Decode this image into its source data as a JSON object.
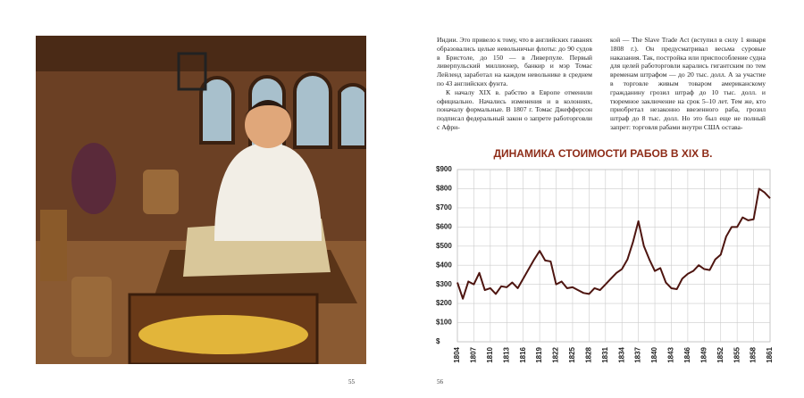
{
  "left_column": [
    "Индии. Это привело к тому, что в английских гаванях образовались целые невольничьи флоты: до 90 судов в Бристоле, до 150 — в Ливерпуле. Первый ливерпульский миллионер, банкир и мэр Томас Лейленд заработал на каждом невольнике в среднем по 43 английских фунта.",
    "К началу XIX в. рабство в Европе отменили официально. Начались изменения и в колониях, поначалу формальные. В 1807 г. Томас Джефферсон подписал федеральный закон о запрете работорговли с Афри-"
  ],
  "right_column": [
    "кой — The Slave Trade Act (вступил в силу 1 января 1808 г.). Он предусматривал весьма суровые наказания. Так, постройка или приспособление судна для целей работорговли карались гигантским по тем временам штрафом — до 20 тыс. долл. А за участие в торговле живым товаром американскому гражданину грозил штраф до 10 тыс. долл. и тюремное заключение на срок 5–10 лет. Тем же, кто приобретал незаконно ввезенного раба, грозил штраф до 8 тыс. долл. Но это был еще не полный запрет: торговля рабами внутри США остава-"
  ],
  "page_numbers": [
    "55",
    "56"
  ],
  "chart_data": {
    "type": "line",
    "title": "ДИНАМИКА СТОИМОСТИ РАБОВ В XIX В.",
    "x": [
      1804,
      1805,
      1806,
      1807,
      1808,
      1809,
      1810,
      1811,
      1812,
      1813,
      1814,
      1815,
      1816,
      1817,
      1818,
      1819,
      1820,
      1821,
      1822,
      1823,
      1824,
      1825,
      1826,
      1827,
      1828,
      1829,
      1830,
      1831,
      1832,
      1833,
      1834,
      1835,
      1836,
      1837,
      1838,
      1839,
      1840,
      1841,
      1842,
      1843,
      1844,
      1845,
      1846,
      1847,
      1848,
      1849,
      1850,
      1851,
      1852,
      1853,
      1854,
      1855,
      1856,
      1857,
      1858,
      1859,
      1860,
      1861
    ],
    "values": [
      310,
      225,
      315,
      300,
      360,
      270,
      280,
      250,
      290,
      285,
      310,
      280,
      330,
      380,
      430,
      475,
      425,
      420,
      300,
      315,
      280,
      285,
      270,
      255,
      250,
      280,
      270,
      300,
      330,
      360,
      380,
      430,
      520,
      630,
      500,
      430,
      370,
      385,
      310,
      280,
      275,
      330,
      355,
      370,
      400,
      380,
      375,
      430,
      455,
      550,
      600,
      600,
      650,
      635,
      640,
      800,
      780,
      750
    ],
    "color": "#4e1510",
    "xlim": [
      1804,
      1861
    ],
    "xticks": [
      1804,
      1807,
      1810,
      1813,
      1816,
      1819,
      1822,
      1825,
      1828,
      1831,
      1834,
      1837,
      1840,
      1843,
      1846,
      1849,
      1852,
      1855,
      1858,
      1861
    ],
    "ylim": [
      0,
      900
    ],
    "yticks": [
      {
        "value": 0,
        "label": "$"
      },
      {
        "value": 100,
        "label": "$100"
      },
      {
        "value": 200,
        "label": "$200"
      },
      {
        "value": 300,
        "label": "$300"
      },
      {
        "value": 400,
        "label": "$400"
      },
      {
        "value": 500,
        "label": "$500"
      },
      {
        "value": 600,
        "label": "$600"
      },
      {
        "value": 700,
        "label": "$700"
      },
      {
        "value": 800,
        "label": "$800"
      },
      {
        "value": 900,
        "label": "$900"
      }
    ],
    "grid": true
  }
}
